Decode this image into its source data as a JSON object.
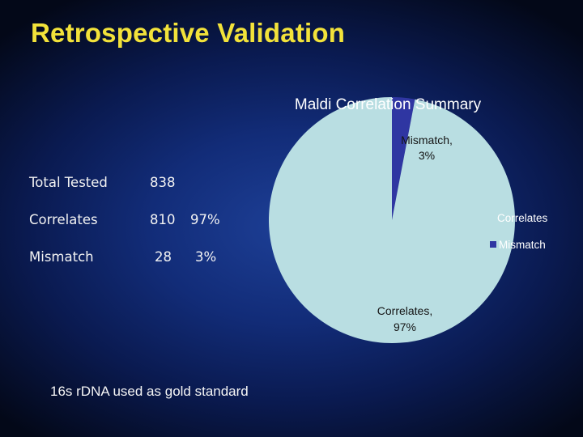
{
  "slide": {
    "title": "Retrospective Validation",
    "footnote": "16s rDNA used as gold standard"
  },
  "summary_table": {
    "rows": [
      {
        "label": "Total Tested",
        "count": "838",
        "percent": ""
      },
      {
        "label": "Correlates",
        "count": "810",
        "percent": "97%"
      },
      {
        "label": "Mismatch",
        "count": "28",
        "percent": "3%"
      }
    ]
  },
  "chart_data": {
    "type": "pie",
    "title": "Maldi Correlation Summary",
    "slices": [
      {
        "name": "Mismatch",
        "value": 3,
        "label_name": "Mismatch,",
        "label_value": "3%",
        "color": "#2f36a2"
      },
      {
        "name": "Correlates",
        "value": 97,
        "label_name": "Correlates,",
        "label_value": "97%",
        "color": "#b9dee2"
      }
    ],
    "legend": {
      "position": "right",
      "entries": [
        {
          "name": "Correlates",
          "color": "#b9dee2"
        },
        {
          "name": "Mismatch",
          "color": "#2f36a2"
        }
      ]
    }
  }
}
